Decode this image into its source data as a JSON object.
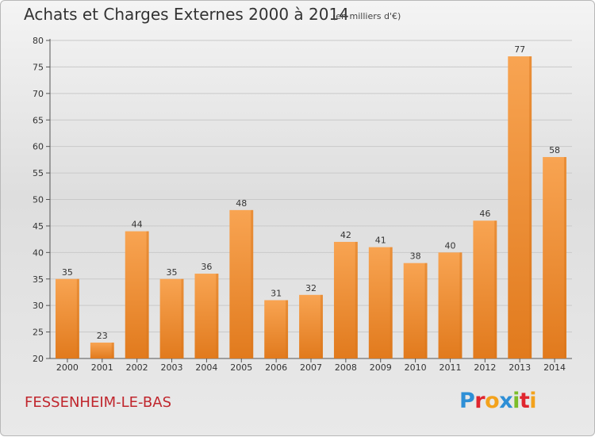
{
  "chart_data": {
    "type": "bar",
    "title": "Achats et Charges Externes 2000 à 2014",
    "subtitle": "(en milliers d'€)",
    "categories": [
      "2000",
      "2001",
      "2002",
      "2003",
      "2004",
      "2005",
      "2006",
      "2007",
      "2008",
      "2009",
      "2010",
      "2011",
      "2012",
      "2013",
      "2014"
    ],
    "values": [
      35,
      23,
      44,
      35,
      36,
      48,
      31,
      32,
      42,
      41,
      38,
      40,
      46,
      77,
      58
    ],
    "xlabel": "",
    "ylabel": "",
    "ylim": [
      20,
      80
    ],
    "yticks": [
      20,
      25,
      30,
      35,
      40,
      45,
      50,
      55,
      60,
      65,
      70,
      75,
      80
    ],
    "grid": true,
    "legend": "none",
    "bar_color": "#f0922c",
    "bar_highlight": "#f7aa55",
    "bar_shadow": "#d8751a"
  },
  "footer": {
    "commune": "FESSENHEIM-LE-BAS",
    "commune_color": "#c0262d"
  },
  "logo": {
    "text": "Proxiti",
    "letter_colors": [
      "#2e8fd6",
      "#e0262f",
      "#f3a21c",
      "#2e8fd6",
      "#7bbd2a",
      "#e0262f",
      "#f3a21c"
    ]
  }
}
